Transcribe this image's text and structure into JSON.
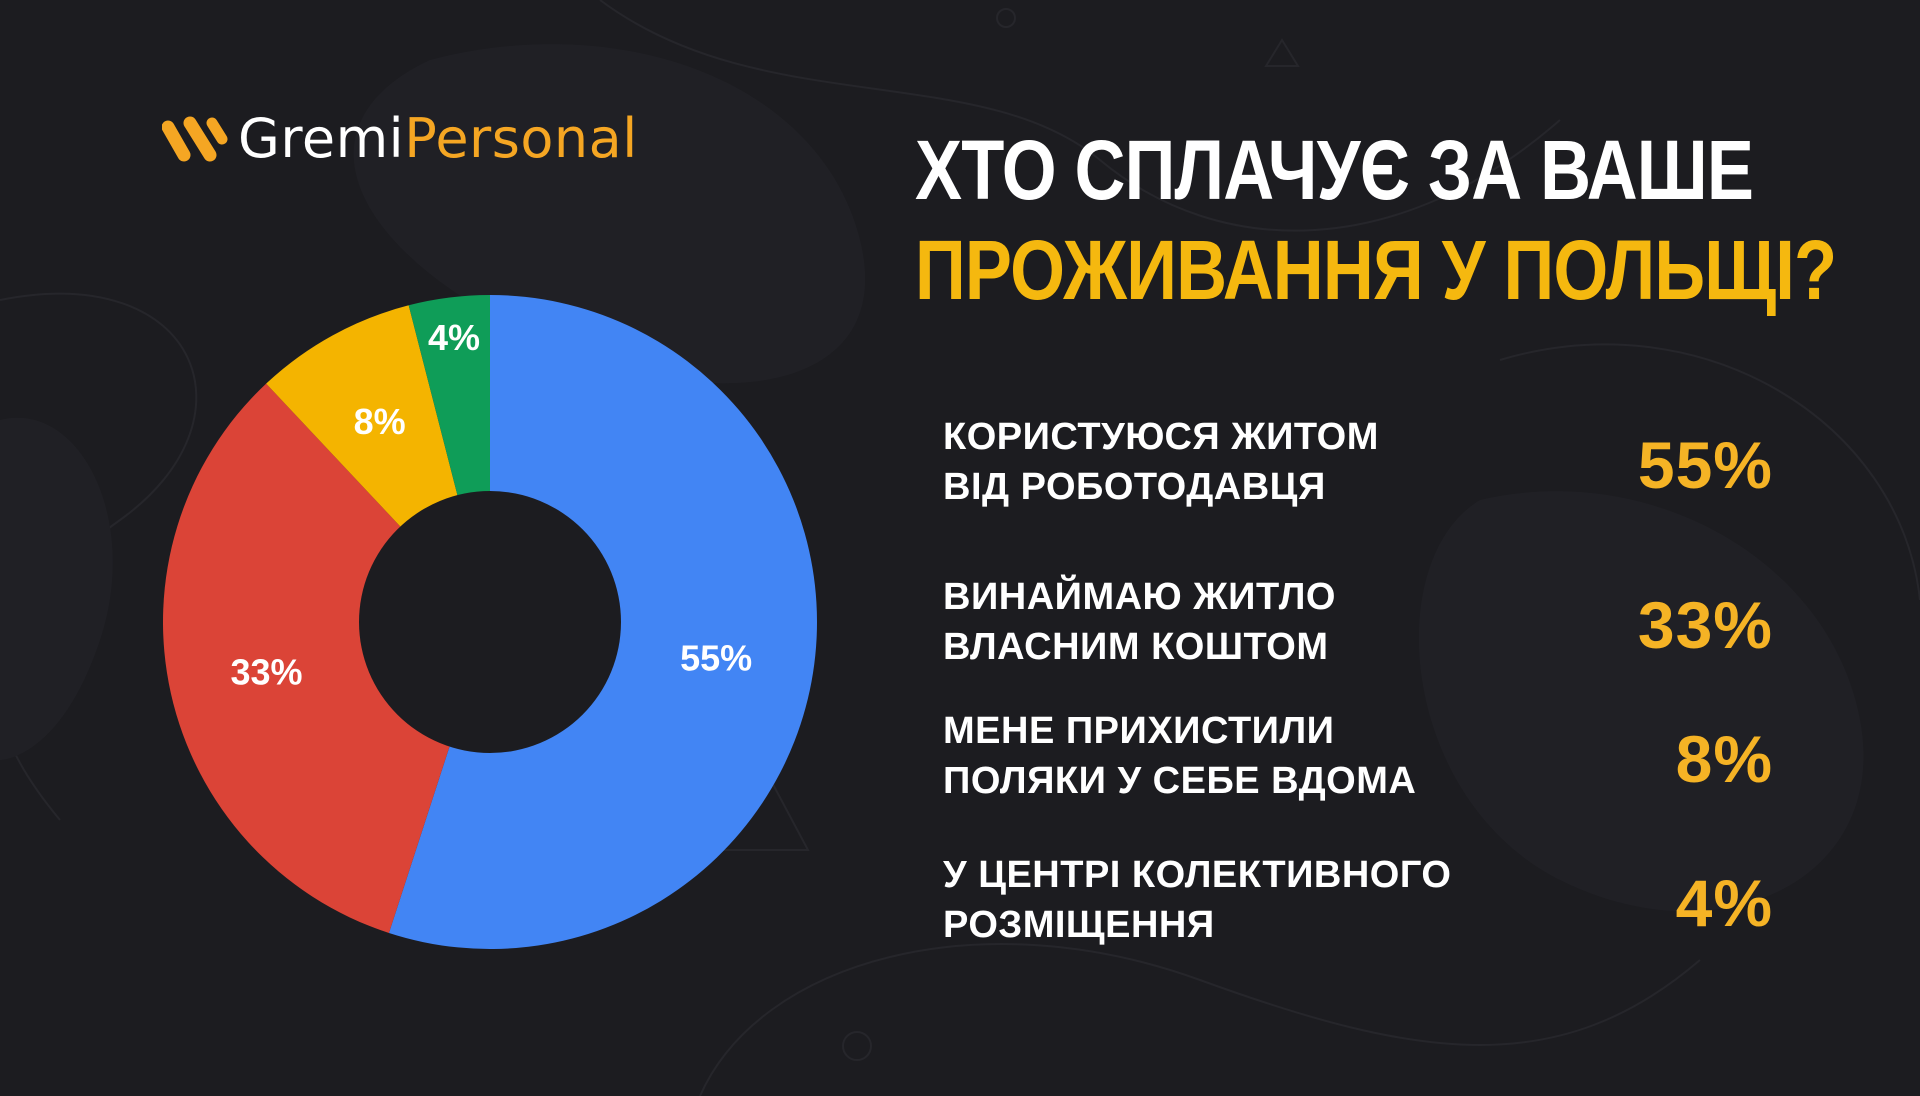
{
  "brand": {
    "name_part1": "Gremi",
    "name_part2": "Personal"
  },
  "title": {
    "line1": "ХТО СПЛАЧУЄ ЗА ВАШЕ",
    "line2": "ПРОЖИВАННЯ У ПОЛЬЩІ?"
  },
  "colors": {
    "background": "#1c1c20",
    "accent": "#f5b325",
    "blue": "#4285f4",
    "red": "#db4437",
    "yellow": "#f4b400",
    "green": "#0f9d58",
    "hole": "#1c1c20"
  },
  "chart_data": {
    "type": "pie",
    "donut": true,
    "categories": [
      "КОРИСТУЮСЯ ЖИТОМ\nВІД РОБОТОДАВЦЯ",
      "ВИНАЙМАЮ ЖИТЛО\nВЛАСНИМ КОШТОМ",
      "МЕНЕ ПРИХИСТИЛИ\nПОЛЯКИ У СЕБЕ ВДОМА",
      "У ЦЕНТРІ КОЛЕКТИВНОГО\nРОЗМІЩЕННЯ"
    ],
    "values": [
      55,
      33,
      8,
      4
    ],
    "value_labels": [
      "55%",
      "33%",
      "8%",
      "4%"
    ],
    "slice_colors": [
      "#4285f4",
      "#db4437",
      "#f4b400",
      "#0f9d58"
    ]
  }
}
